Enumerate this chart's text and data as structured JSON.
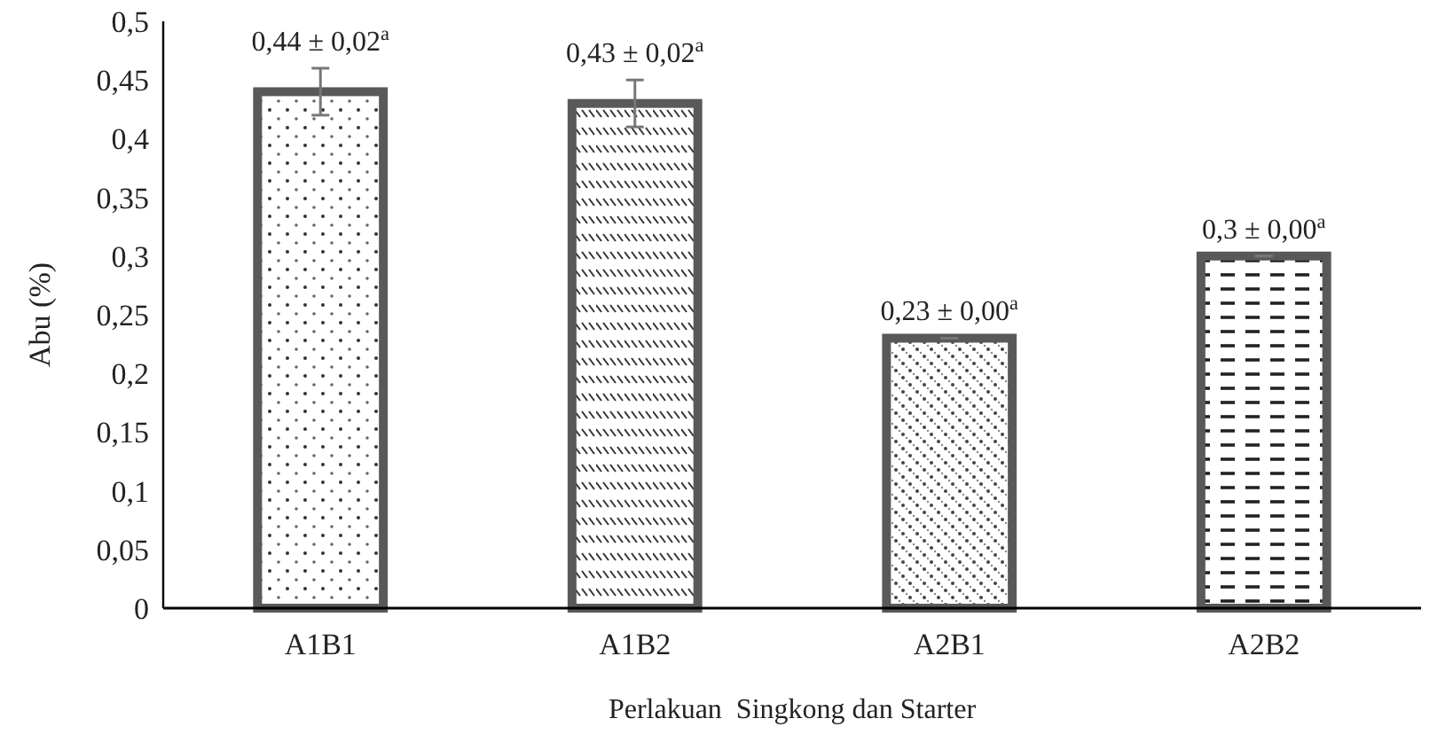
{
  "chart_data": {
    "type": "bar",
    "xlabel": "Perlakuan  Singkong dan Starter",
    "ylabel": "Abu (%)",
    "categories": [
      "A1B1",
      "A1B2",
      "A2B1",
      "A2B2"
    ],
    "values": [
      0.44,
      0.43,
      0.23,
      0.3
    ],
    "errors": [
      0.02,
      0.02,
      0,
      0
    ],
    "value_labels": [
      "0,44 ± 0,02$^{a}$",
      "0,43 ± 0,02$^{a}$",
      "0,23 ± 0,00$^{a}$",
      "0,3 ± 0,00$^{a}$"
    ],
    "colors": [
      "#595959",
      "#595959",
      "#595959",
      "#595959"
    ],
    "ylim": [
      0,
      0.5
    ],
    "yticks": [
      {
        "value": 0,
        "label": "0"
      },
      {
        "value": 0.05,
        "label": "0,05"
      },
      {
        "value": 0.1,
        "label": "0,1"
      },
      {
        "value": 0.15,
        "label": "0,15"
      },
      {
        "value": 0.2,
        "label": "0,2"
      },
      {
        "value": 0.25,
        "label": "0,25"
      },
      {
        "value": 0.3,
        "label": "0,3"
      },
      {
        "value": 0.35,
        "label": "0,35"
      },
      {
        "value": 0.4,
        "label": "0,4"
      },
      {
        "value": 0.45,
        "label": "0,45"
      },
      {
        "value": 0.5,
        "label": "0,5"
      }
    ],
    "grid": false
  }
}
